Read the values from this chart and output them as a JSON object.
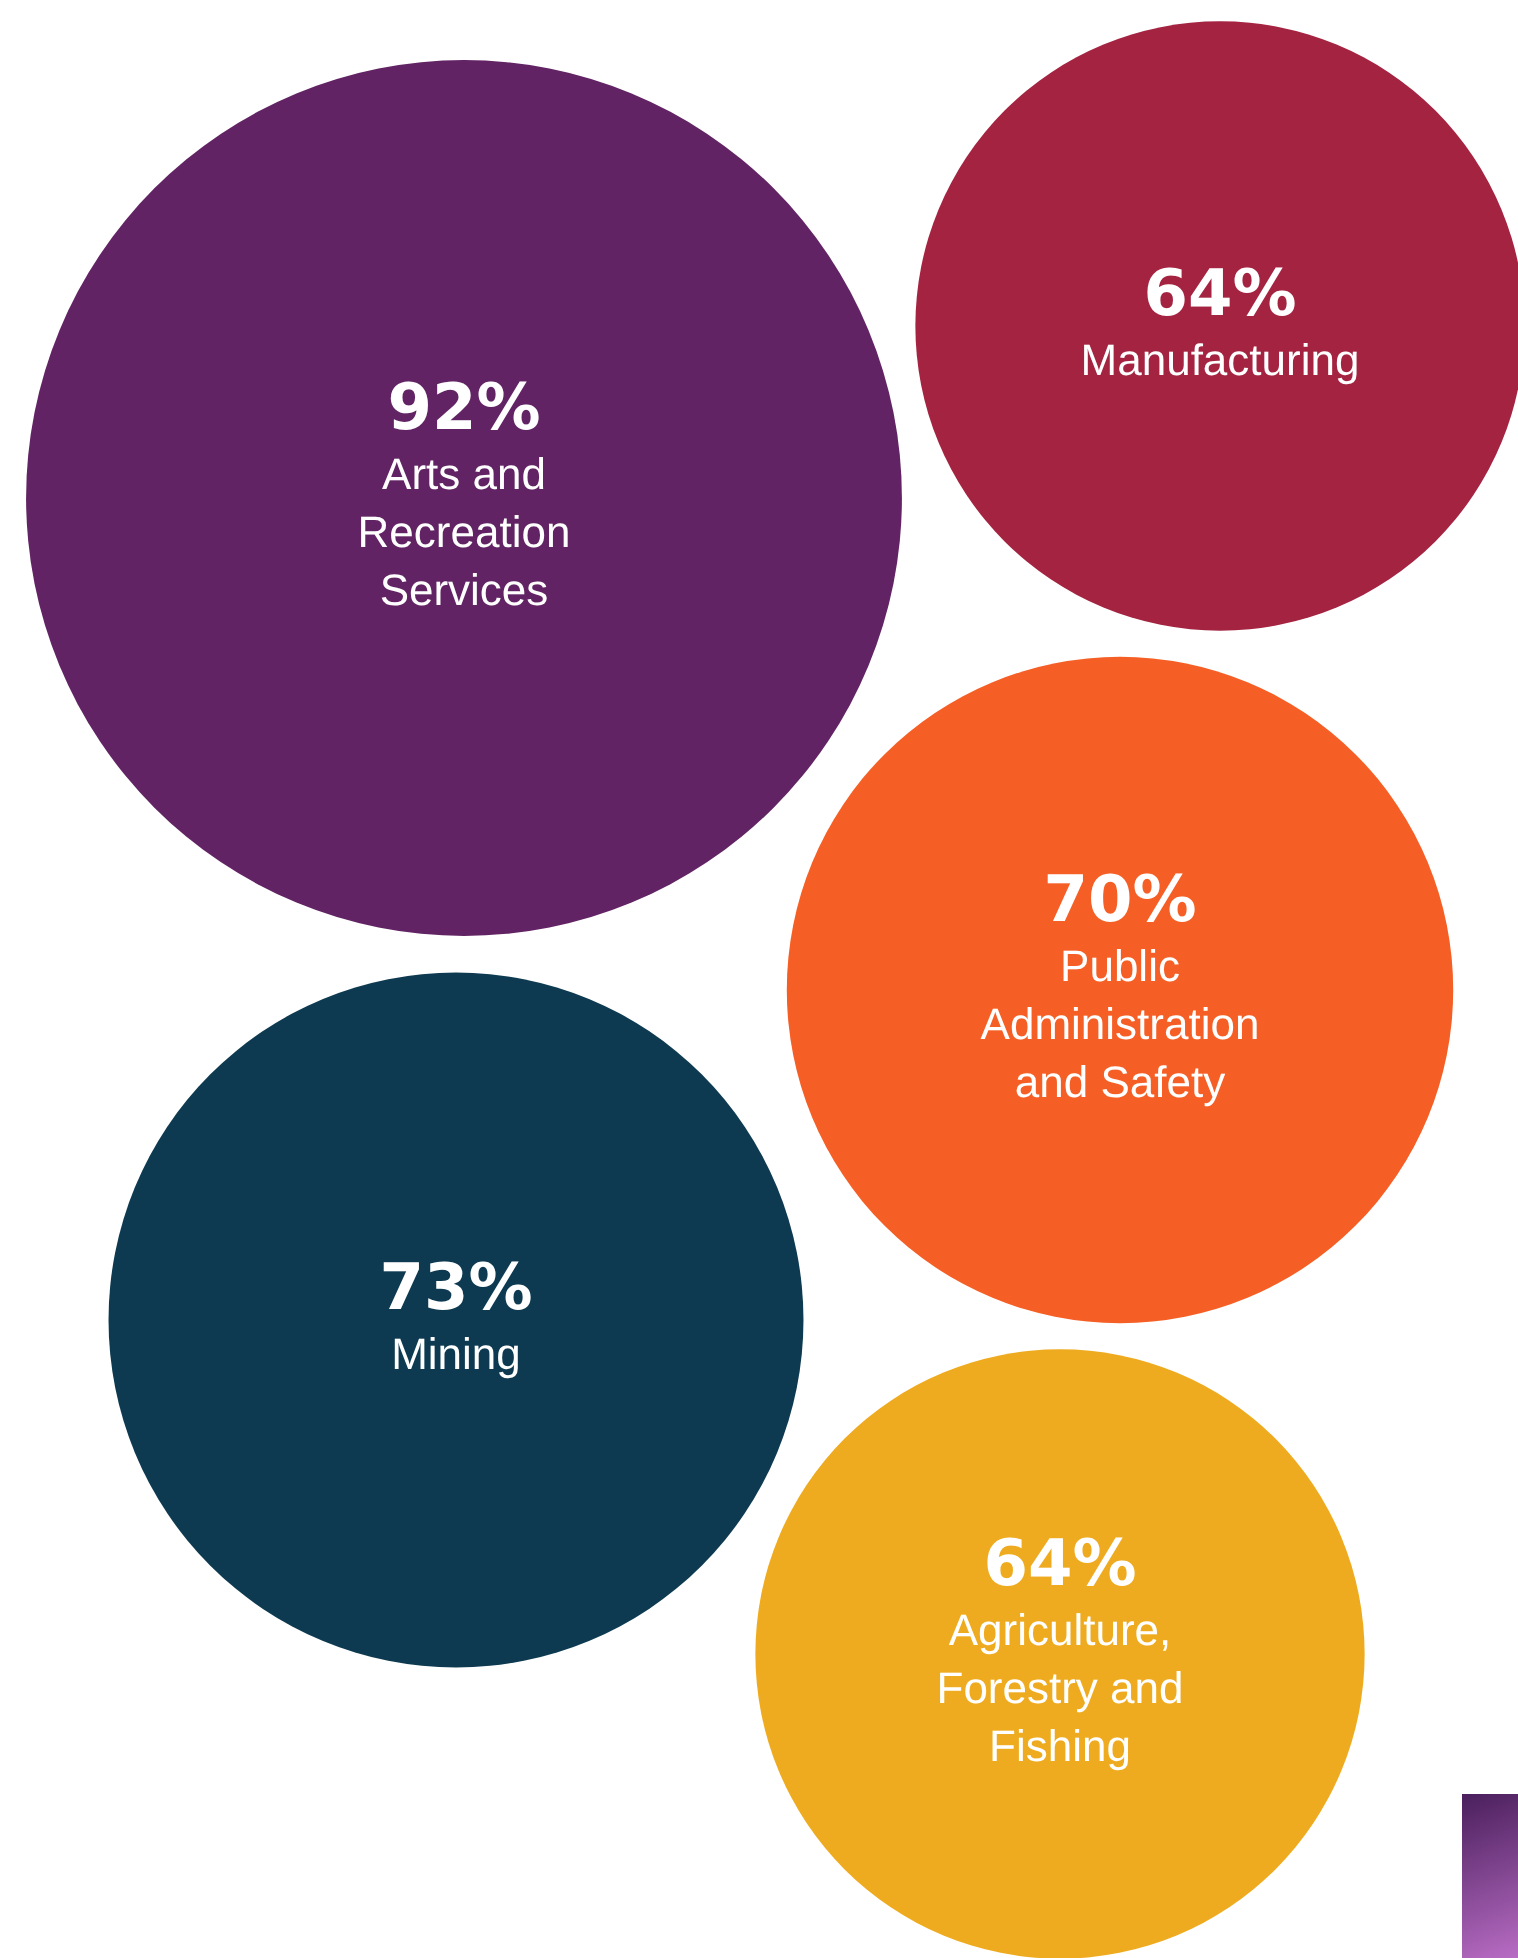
{
  "chart_data": {
    "type": "other",
    "categories": [
      "Arts and Recreation Services",
      "Manufacturing",
      "Public Administration and Safety",
      "Mining",
      "Agriculture, Forestry and Fishing"
    ],
    "values": [
      92,
      64,
      70,
      73,
      64
    ],
    "value_labels": [
      "92%",
      "64%",
      "70%",
      "73%",
      "64%"
    ],
    "colors": [
      "#612363",
      "#a32340",
      "#f55f25",
      "#0d3a50",
      "#efab1f"
    ]
  }
}
